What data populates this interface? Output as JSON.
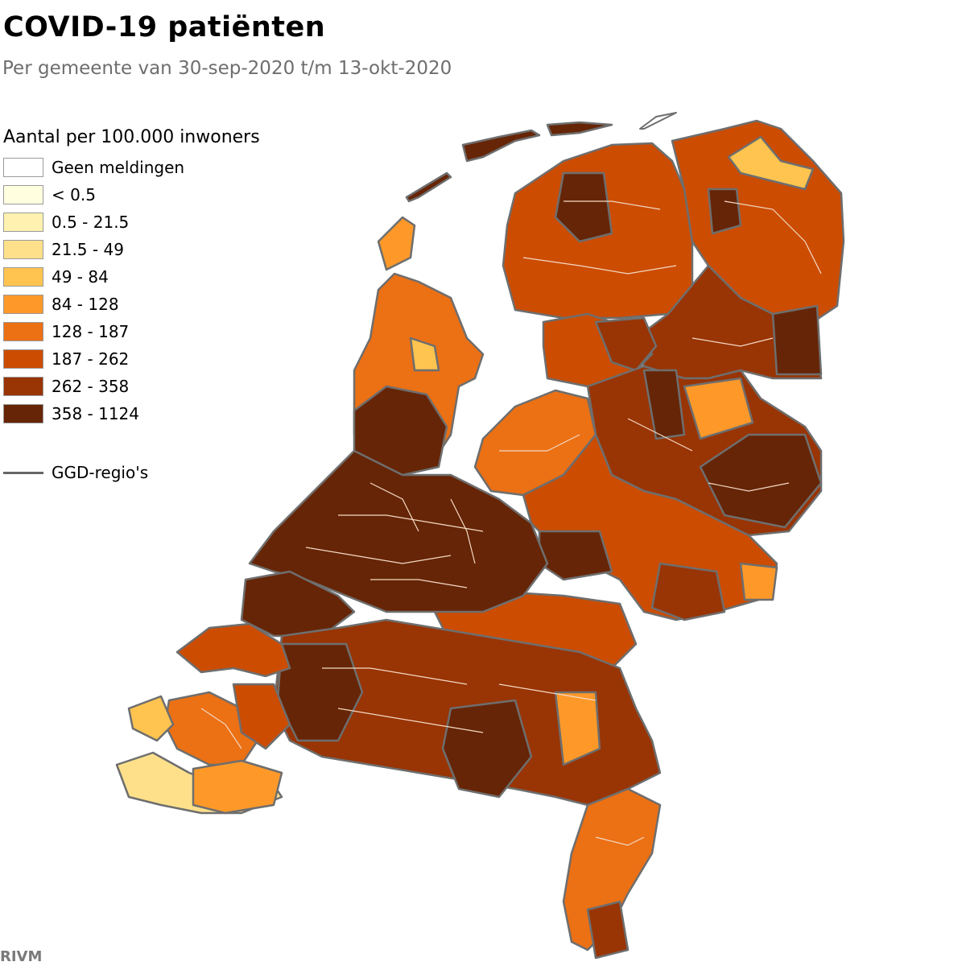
{
  "title": "COVID-19 patiënten",
  "subtitle": "Per gemeente van 30-sep-2020 t/m 13-okt-2020",
  "legend": {
    "title": "Aantal per 100.000 inwoners",
    "items": [
      {
        "label": "Geen meldingen",
        "color": "#ffffff"
      },
      {
        "label": "< 0.5",
        "color": "#ffffe0"
      },
      {
        "label": "0.5 - 21.5",
        "color": "#fff2b0"
      },
      {
        "label": "21.5 - 49",
        "color": "#fee08b"
      },
      {
        "label": "49 - 84",
        "color": "#fec44f"
      },
      {
        "label": "84 - 128",
        "color": "#fe9929"
      },
      {
        "label": "128 - 187",
        "color": "#ec7014"
      },
      {
        "label": "187 - 262",
        "color": "#cc4c02"
      },
      {
        "label": "262 - 358",
        "color": "#993404"
      },
      {
        "label": "358 - 1124",
        "color": "#662506"
      }
    ],
    "ggd_label": "GGD-regio's"
  },
  "source": "RIVM",
  "colors": {
    "border_ggd": "#6e6e6e",
    "border_municipality": "#f3d9c4"
  }
}
